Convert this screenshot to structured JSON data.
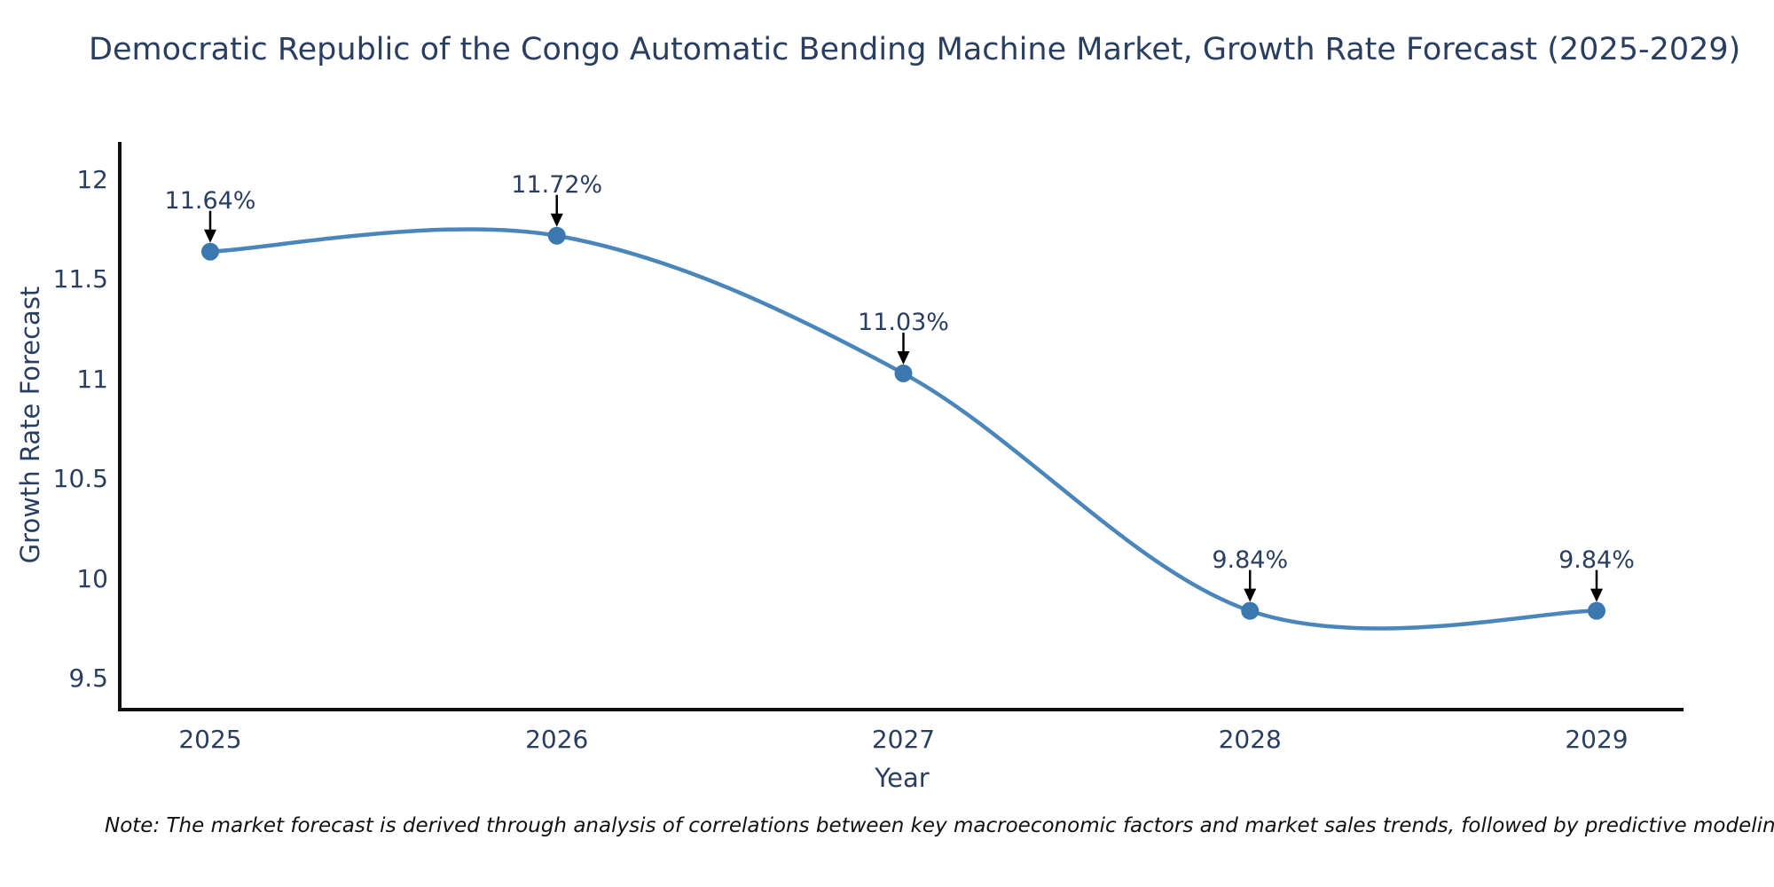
{
  "title": "Democratic Republic of the Congo Automatic Bending Machine Market, Growth Rate Forecast (2025-2029)",
  "note": "Note: The market forecast is derived through analysis of correlations between key macroeconomic factors and market sales trends, followed by predictive modeling to project future sal",
  "chart_data": {
    "type": "line",
    "line_shape": "spline",
    "title": "Democratic Republic of the Congo Automatic Bending Machine Market, Growth Rate Forecast (2025-2029)",
    "xlabel": "Year",
    "ylabel": "Growth Rate Forecast",
    "categories": [
      2025,
      2026,
      2027,
      2028,
      2029
    ],
    "values": [
      11.64,
      11.72,
      11.03,
      9.84,
      9.84
    ],
    "point_labels": [
      "11.64%",
      "11.72%",
      "11.03%",
      "9.84%",
      "9.84%"
    ],
    "xtick_labels": [
      "2025",
      "2026",
      "2027",
      "2028",
      "2029"
    ],
    "ytick_values": [
      12,
      11.5,
      11,
      10.5,
      10,
      9.5
    ],
    "ytick_labels": [
      "12",
      "11.5",
      "11",
      "10.5",
      "10",
      "9.5"
    ],
    "ylim": [
      9.345,
      12.19
    ],
    "grid": false,
    "legend": false,
    "colors": {
      "line": "#4a86ba",
      "marker": "#3b78af",
      "axis": "#0f0f0f",
      "text": "#2a3f5f",
      "annotation_arrow": "#000000"
    }
  }
}
